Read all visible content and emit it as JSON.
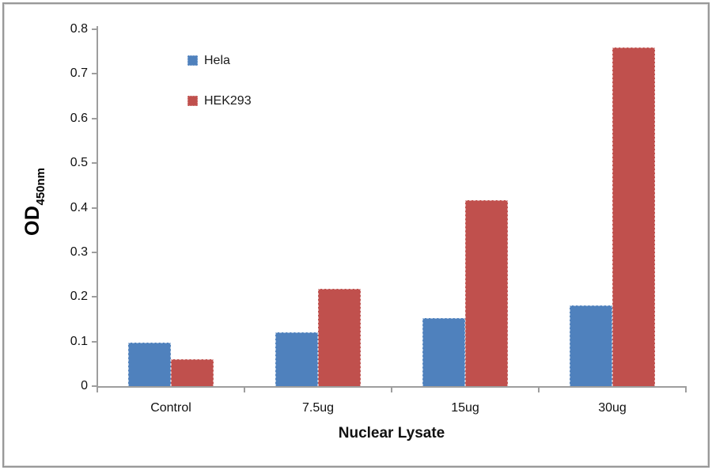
{
  "chart_data": {
    "type": "bar",
    "title": "",
    "categories": [
      "Control",
      "7.5ug",
      "15ug",
      "30ug"
    ],
    "series": [
      {
        "name": "Hela",
        "color": "#4F81BD",
        "values": [
          0.098,
          0.121,
          0.152,
          0.181
        ]
      },
      {
        "name": "HEK293",
        "color": "#C0504D",
        "values": [
          0.06,
          0.218,
          0.417,
          0.76
        ]
      }
    ],
    "xlabel": "Nuclear Lysate",
    "ylabel": "OD",
    "ylabel_sub": "450nm",
    "ylim": [
      0,
      0.8
    ],
    "ytick_step": 0.1,
    "ytick_labels": [
      "0",
      "0.1",
      "0.2",
      "0.3",
      "0.4",
      "0.5",
      "0.6",
      "0.7",
      "0.8"
    ],
    "grid": false,
    "legend_position": "inside-top-left",
    "axis_color": "#9e9e9e",
    "frame_color": "#989898",
    "text_color": "#111111"
  }
}
